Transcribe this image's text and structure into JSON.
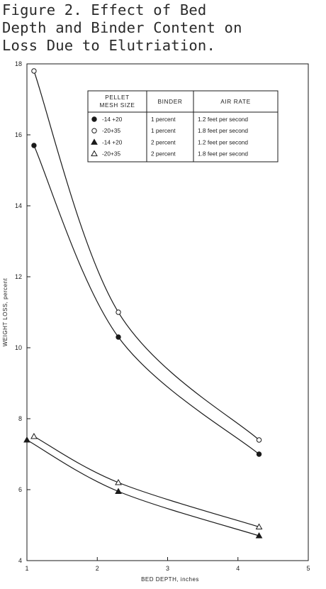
{
  "title_lines": [
    "Figure 2. Effect of Bed",
    "Depth and Binder Content on",
    "Loss Due to Elutriation."
  ],
  "chart_data": {
    "type": "line",
    "xlabel": "BED DEPTH, inches",
    "ylabel": "WEIGHT LOSS, percent",
    "xlim": [
      1,
      5
    ],
    "ylim": [
      4,
      18
    ],
    "xticks": [
      1,
      2,
      3,
      4,
      5
    ],
    "yticks": [
      4,
      6,
      8,
      10,
      12,
      14,
      16,
      18
    ],
    "grid": false,
    "legend": {
      "placement": "top-right",
      "headers": [
        "PELLET MESH SIZE",
        "BINDER",
        "AIR RATE"
      ],
      "rows": [
        {
          "symbol": "filled-circle",
          "mesh": "-14 +20",
          "binder": "1 percent",
          "air": "1.2 feet per second"
        },
        {
          "symbol": "open-circle",
          "mesh": "-20+35",
          "binder": "1 percent",
          "air": "1.8 feet per second"
        },
        {
          "symbol": "filled-triangle",
          "mesh": "-14 +20",
          "binder": "2 percent",
          "air": "1.2 feet per second"
        },
        {
          "symbol": "open-triangle",
          "mesh": "-20+35",
          "binder": "2 percent",
          "air": "1.8 feet per second"
        }
      ]
    },
    "series": [
      {
        "symbol": "filled-circle",
        "x": [
          1.1,
          2.3,
          4.3
        ],
        "y": [
          15.7,
          10.3,
          7.0
        ]
      },
      {
        "symbol": "open-circle",
        "x": [
          1.1,
          2.3,
          4.3
        ],
        "y": [
          17.8,
          11.0,
          7.4
        ]
      },
      {
        "symbol": "filled-triangle",
        "x": [
          1.0,
          2.3,
          4.3
        ],
        "y": [
          7.4,
          5.95,
          4.7
        ]
      },
      {
        "symbol": "open-triangle",
        "x": [
          1.1,
          2.3,
          4.3
        ],
        "y": [
          7.5,
          6.2,
          4.95
        ]
      }
    ],
    "colors": {
      "ink": "#1a1a1a",
      "paper": "#ffffff"
    }
  }
}
